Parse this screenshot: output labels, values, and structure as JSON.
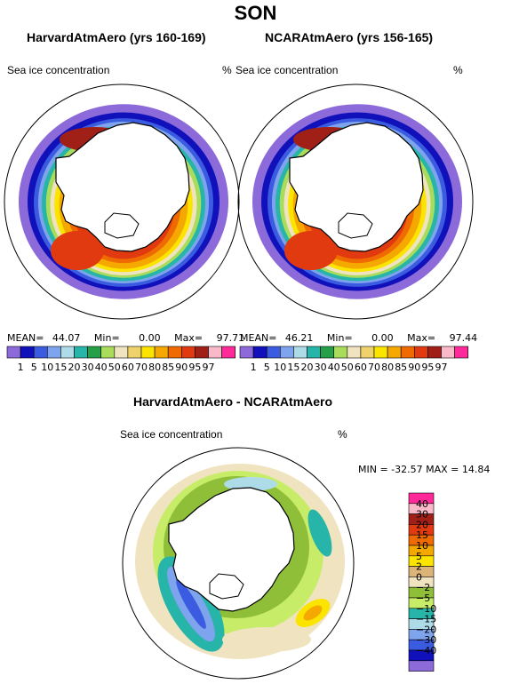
{
  "page": {
    "title": "SON"
  },
  "panels": [
    {
      "title": "HarvardAtmAero (yrs 160-169)",
      "variable": "Sea ice concentration",
      "units": "%",
      "stats": {
        "mean_label": "MEAN=",
        "mean": "44.07",
        "min_label": "Min=",
        "min": "0.00",
        "max_label": "Max=",
        "max": "97.71"
      }
    },
    {
      "title": "NCARAtmAero (yrs 156-165)",
      "variable": "Sea ice concentration",
      "units": "%",
      "stats": {
        "mean_label": "MEAN=",
        "mean": "46.21",
        "min_label": "Min=",
        "min": "0.00",
        "max_label": "Max=",
        "max": "97.44"
      }
    }
  ],
  "diff": {
    "title": "HarvardAtmAero - NCARAtmAero",
    "variable": "Sea ice concentration",
    "units": "%",
    "stats": "MIN = -32.57 MAX =  14.84"
  },
  "chart_data": [
    {
      "type": "heatmap",
      "projection": "south-polar-stereographic",
      "title": "HarvardAtmAero (yrs 160-169)",
      "variable": "Sea ice concentration",
      "units": "%",
      "mean": 44.07,
      "min": 0.0,
      "max": 97.71,
      "colorbar_levels": [
        1,
        5,
        10,
        15,
        20,
        30,
        40,
        50,
        60,
        70,
        80,
        85,
        90,
        95,
        97
      ],
      "colorbar_labels": [
        "1",
        "5",
        "10",
        "15",
        "20",
        "30",
        "40",
        "50",
        "60",
        "70",
        "80",
        "85",
        "90",
        "95",
        "97"
      ],
      "colorbar_colors": [
        "#8c6ad9",
        "#1111bb",
        "#3b5be0",
        "#7fa4ee",
        "#aedbe8",
        "#26b5a8",
        "#26a048",
        "#a8dc5a",
        "#efe3c0",
        "#f0d26c",
        "#fbe400",
        "#f5a800",
        "#ef6a00",
        "#e23a10",
        "#a02018",
        "#f9b9c8",
        "#ff2a9a"
      ]
    },
    {
      "type": "heatmap",
      "projection": "south-polar-stereographic",
      "title": "NCARAtmAero (yrs 156-165)",
      "variable": "Sea ice concentration",
      "units": "%",
      "mean": 46.21,
      "min": 0.0,
      "max": 97.44,
      "colorbar_levels": [
        1,
        5,
        10,
        15,
        20,
        30,
        40,
        50,
        60,
        70,
        80,
        85,
        90,
        95,
        97
      ],
      "colorbar_labels": [
        "1",
        "5",
        "10",
        "15",
        "20",
        "30",
        "40",
        "50",
        "60",
        "70",
        "80",
        "85",
        "90",
        "95",
        "97"
      ],
      "colorbar_colors": [
        "#8c6ad9",
        "#1111bb",
        "#3b5be0",
        "#7fa4ee",
        "#aedbe8",
        "#26b5a8",
        "#26a048",
        "#a8dc5a",
        "#efe3c0",
        "#f0d26c",
        "#fbe400",
        "#f5a800",
        "#ef6a00",
        "#e23a10",
        "#a02018",
        "#f9b9c8",
        "#ff2a9a"
      ]
    },
    {
      "type": "heatmap",
      "projection": "south-polar-stereographic",
      "title": "HarvardAtmAero - NCARAtmAero",
      "variable": "Sea ice concentration",
      "units": "%",
      "min": -32.57,
      "max": 14.84,
      "colorbar_orientation": "vertical",
      "colorbar_levels": [
        40,
        30,
        20,
        15,
        10,
        5,
        2,
        0,
        -2,
        -5,
        -10,
        -15,
        -20,
        -30,
        -40
      ],
      "colorbar_labels": [
        "40",
        "30",
        "20",
        "15",
        "10",
        "5",
        "2",
        "0",
        "−2",
        "−5",
        "−10",
        "−15",
        "−20",
        "−30",
        "−40"
      ],
      "colorbar_colors": [
        "#ff2a9a",
        "#f9b9c8",
        "#a02018",
        "#e23a10",
        "#ef6a00",
        "#f5a800",
        "#fbe400",
        "#dcb378",
        "#efe3c0",
        "#8fbf38",
        "#c6ec68",
        "#26b5a8",
        "#aedbe8",
        "#7fa4ee",
        "#3b5be0",
        "#1111bb",
        "#8c6ad9"
      ]
    }
  ]
}
